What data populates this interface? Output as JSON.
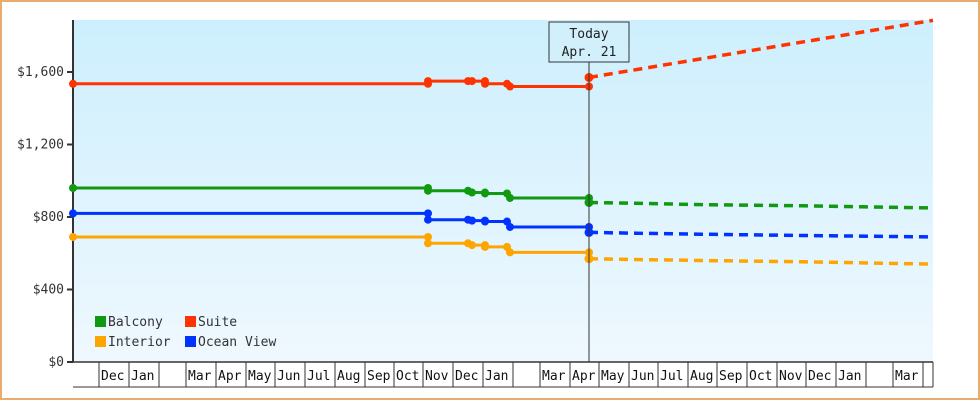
{
  "chart_data": {
    "type": "line",
    "title": "",
    "xlabel": "",
    "ylabel": "",
    "ylim": [
      0,
      1900
    ],
    "y_ticks": [
      {
        "label": "$0",
        "value": 0
      },
      {
        "label": "$400",
        "value": 400
      },
      {
        "label": "$800",
        "value": 800
      },
      {
        "label": "$1,200",
        "value": 1200
      },
      {
        "label": "$1,600",
        "value": 1600
      }
    ],
    "x_month_labels": [
      "",
      "Dec",
      "Jan",
      "",
      "Mar",
      "Apr",
      "May",
      "Jun",
      "Jul",
      "Aug",
      "Sep",
      "Oct",
      "Nov",
      "Dec",
      "Jan",
      "",
      "Mar",
      "Apr",
      "May",
      "Jun",
      "Jul",
      "Aug",
      "Sep",
      "Oct",
      "Nov",
      "Dec",
      "Jan",
      "",
      "Mar",
      ""
    ],
    "today_marker": {
      "line1": "Today",
      "line2": "Apr. 21"
    },
    "legend": [
      {
        "name": "Balcony",
        "color": "#119911"
      },
      {
        "name": "Suite",
        "color": "#ff3300"
      },
      {
        "name": "Interior",
        "color": "#ffa500"
      },
      {
        "name": "Ocean View",
        "color": "#0033ff"
      }
    ],
    "series": [
      {
        "name": "Suite",
        "color": "#ff3300",
        "history": [
          [
            71,
            1535
          ],
          [
            426,
            1535
          ],
          [
            426,
            1550
          ],
          [
            466,
            1550
          ],
          [
            470,
            1550
          ],
          [
            483,
            1550
          ],
          [
            483,
            1535
          ],
          [
            505,
            1535
          ],
          [
            508,
            1520
          ],
          [
            587,
            1520
          ]
        ],
        "today_value": 1570,
        "forecast": [
          [
            587,
            1570
          ],
          [
            931,
            1885
          ]
        ]
      },
      {
        "name": "Balcony",
        "color": "#119911",
        "history": [
          [
            71,
            960
          ],
          [
            426,
            960
          ],
          [
            426,
            945
          ],
          [
            466,
            945
          ],
          [
            470,
            935
          ],
          [
            483,
            935
          ],
          [
            483,
            930
          ],
          [
            505,
            930
          ],
          [
            508,
            905
          ],
          [
            587,
            905
          ]
        ],
        "today_value": 880,
        "forecast": [
          [
            587,
            880
          ],
          [
            640,
            875
          ],
          [
            700,
            868
          ],
          [
            800,
            862
          ],
          [
            931,
            850
          ]
        ]
      },
      {
        "name": "Ocean View",
        "color": "#0033ff",
        "history": [
          [
            71,
            820
          ],
          [
            426,
            820
          ],
          [
            426,
            785
          ],
          [
            466,
            785
          ],
          [
            470,
            780
          ],
          [
            483,
            780
          ],
          [
            483,
            775
          ],
          [
            505,
            775
          ],
          [
            508,
            745
          ],
          [
            587,
            745
          ]
        ],
        "today_value": 715,
        "forecast": [
          [
            587,
            715
          ],
          [
            640,
            710
          ],
          [
            700,
            705
          ],
          [
            800,
            698
          ],
          [
            931,
            690
          ]
        ]
      },
      {
        "name": "Interior",
        "color": "#ffa500",
        "history": [
          [
            71,
            690
          ],
          [
            426,
            690
          ],
          [
            426,
            655
          ],
          [
            466,
            655
          ],
          [
            470,
            645
          ],
          [
            483,
            645
          ],
          [
            483,
            635
          ],
          [
            505,
            635
          ],
          [
            508,
            605
          ],
          [
            587,
            605
          ]
        ],
        "today_value": 570,
        "forecast": [
          [
            587,
            570
          ],
          [
            640,
            565
          ],
          [
            700,
            560
          ],
          [
            800,
            553
          ],
          [
            931,
            540
          ]
        ]
      }
    ]
  }
}
